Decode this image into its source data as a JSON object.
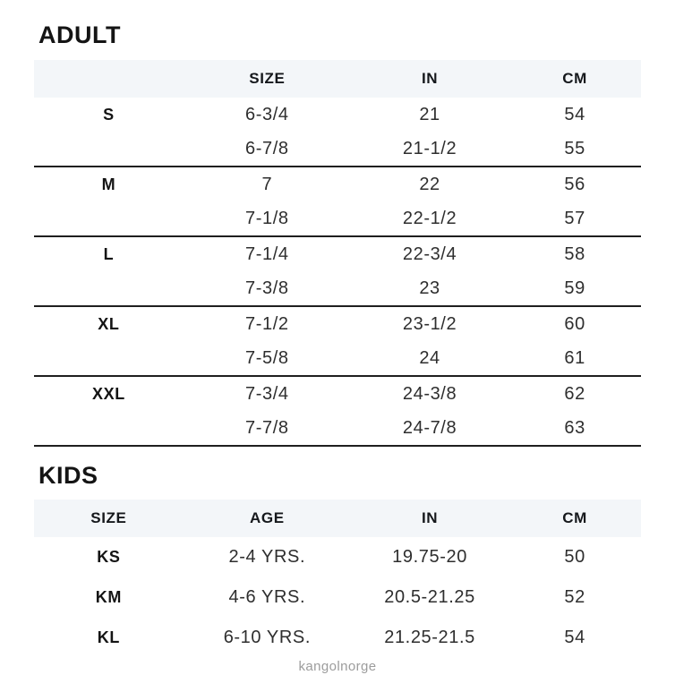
{
  "colors": {
    "header_bg": "#f3f6f9",
    "divider": "#1f1f1f",
    "footer_gray": "#9c9c9c"
  },
  "adult": {
    "title": "ADULT",
    "columns": [
      "",
      "SIZE",
      "IN",
      "CM"
    ],
    "groups": [
      {
        "label": "S",
        "rows": [
          [
            "6-3/4",
            "21",
            "54"
          ],
          [
            "6-7/8",
            "21-1/2",
            "55"
          ]
        ]
      },
      {
        "label": "M",
        "rows": [
          [
            "7",
            "22",
            "56"
          ],
          [
            "7-1/8",
            "22-1/2",
            "57"
          ]
        ]
      },
      {
        "label": "L",
        "rows": [
          [
            "7-1/4",
            "22-3/4",
            "58"
          ],
          [
            "7-3/8",
            "23",
            "59"
          ]
        ]
      },
      {
        "label": "XL",
        "rows": [
          [
            "7-1/2",
            "23-1/2",
            "60"
          ],
          [
            "7-5/8",
            "24",
            "61"
          ]
        ]
      },
      {
        "label": "XXL",
        "rows": [
          [
            "7-3/4",
            "24-3/8",
            "62"
          ],
          [
            "7-7/8",
            "24-7/8",
            "63"
          ]
        ]
      }
    ]
  },
  "kids": {
    "title": "KIDS",
    "columns": [
      "SIZE",
      "AGE",
      "IN",
      "CM"
    ],
    "rows": [
      {
        "size": "KS",
        "age": "2-4 YRS.",
        "in": "19.75-20",
        "cm": "50"
      },
      {
        "size": "KM",
        "age": "4-6 YRS.",
        "in": "20.5-21.25",
        "cm": "52"
      },
      {
        "size": "KL",
        "age": "6-10 YRS.",
        "in": "21.25-21.5",
        "cm": "54"
      }
    ]
  },
  "footer": {
    "watermark": "kangolnorge"
  }
}
